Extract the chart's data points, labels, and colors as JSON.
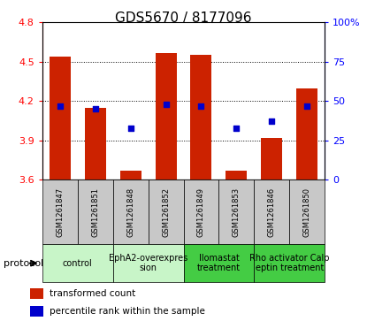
{
  "title": "GDS5670 / 8177096",
  "samples": [
    "GSM1261847",
    "GSM1261851",
    "GSM1261848",
    "GSM1261852",
    "GSM1261849",
    "GSM1261853",
    "GSM1261846",
    "GSM1261850"
  ],
  "bar_values": [
    4.54,
    4.15,
    3.67,
    4.57,
    4.55,
    3.67,
    3.92,
    4.3
  ],
  "percentile_values": [
    47,
    45,
    33,
    48,
    47,
    33,
    37,
    47
  ],
  "bar_bottom": 3.6,
  "ylim_left": [
    3.6,
    4.8
  ],
  "ylim_right": [
    0,
    100
  ],
  "yticks_left": [
    3.6,
    3.9,
    4.2,
    4.5,
    4.8
  ],
  "yticks_right": [
    0,
    25,
    50,
    75,
    100
  ],
  "proto_groups": [
    {
      "start": 0,
      "end": 1,
      "label": "control",
      "color": "#c8f5c8"
    },
    {
      "start": 2,
      "end": 3,
      "label": "EphA2-overexpres\nsion",
      "color": "#c8f5c8"
    },
    {
      "start": 4,
      "end": 5,
      "label": "Ilomastat\ntreatment",
      "color": "#44cc44"
    },
    {
      "start": 6,
      "end": 7,
      "label": "Rho activator Calp\neptin treatment",
      "color": "#44cc44"
    }
  ],
  "bar_color": "#cc2200",
  "dot_color": "#0000cc",
  "bar_width": 0.6,
  "background_color": "#ffffff",
  "protocol_label": "protocol",
  "legend_bar_label": "transformed count",
  "legend_dot_label": "percentile rank within the sample",
  "sample_box_color": "#c8c8c8",
  "title_fontsize": 11,
  "tick_fontsize": 8,
  "sample_fontsize": 6,
  "proto_fontsize": 7,
  "legend_fontsize": 7.5
}
